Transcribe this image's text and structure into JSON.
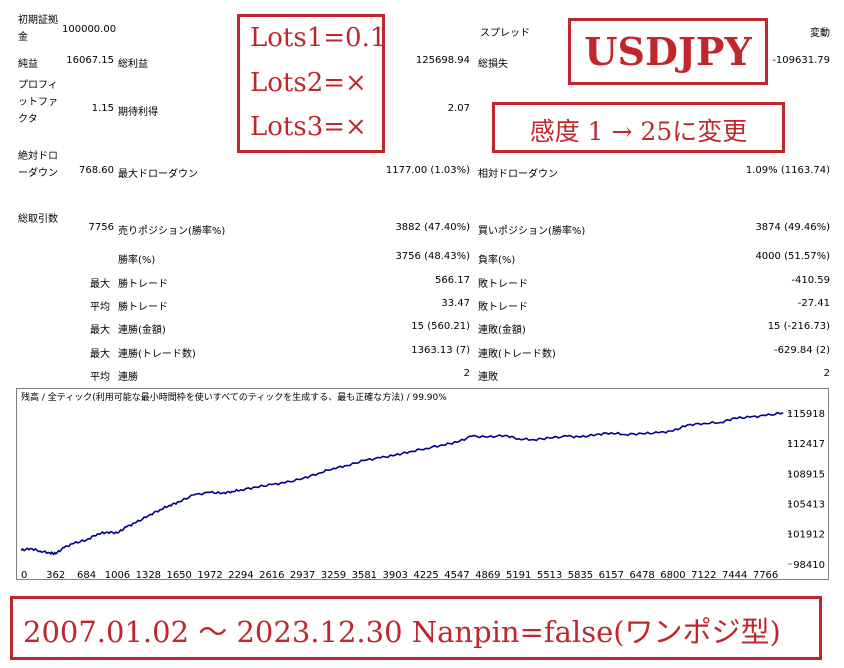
{
  "report": {
    "initial_deposit": {
      "label": "初期証拠金",
      "value": "100000.00"
    },
    "spread": {
      "label": "スプレッド",
      "value": "変動"
    },
    "net_profit": {
      "label": "純益",
      "value": "16067.15"
    },
    "gross_profit": {
      "label": "総利益",
      "value": "125698.94"
    },
    "gross_loss": {
      "label": "総損失",
      "value": "-109631.79"
    },
    "profit_factor": {
      "label": "プロフィットファクタ",
      "value": "1.15"
    },
    "expected_payoff": {
      "label": "期待利得",
      "value": "2.07"
    },
    "absolute_drawdown": {
      "label": "絶対ドローダウン",
      "value": "768.60"
    },
    "maximal_drawdown": {
      "label": "最大ドローダウン",
      "value": "1177.00 (1.03%)"
    },
    "relative_drawdown": {
      "label": "相対ドローダウン",
      "value": "1.09% (1163.74)"
    },
    "total_trades": {
      "label": "総取引数",
      "value": "7756"
    },
    "short_positions": {
      "label": "売りポジション(勝率%)",
      "value": "3882 (47.40%)"
    },
    "long_positions": {
      "label": "買いポジション(勝率%)",
      "value": "3874 (49.46%)"
    },
    "win_rate": {
      "label": "勝率(%)",
      "value": "3756 (48.43%)"
    },
    "loss_rate": {
      "label": "負率(%)",
      "value": "4000 (51.57%)"
    },
    "largest": {
      "prefix": "最大",
      "profit_label": "勝トレード",
      "profit_value": "566.17",
      "loss_label": "敗トレード",
      "loss_value": "-410.59"
    },
    "average": {
      "prefix": "平均",
      "profit_label": "勝トレード",
      "profit_value": "33.47",
      "loss_label": "敗トレード",
      "loss_value": "-27.41"
    },
    "max_consec_money": {
      "prefix": "最大",
      "wins_label": "連勝(金額)",
      "wins_value": "15 (560.21)",
      "losses_label": "連敗(金額)",
      "losses_value": "15 (-216.73)"
    },
    "max_consec_trades": {
      "prefix": "最大",
      "wins_label": "連勝(トレード数)",
      "wins_value": "1363.13 (7)",
      "losses_label": "連敗(トレード数)",
      "losses_value": "-629.84 (2)"
    },
    "avg_consec": {
      "prefix": "平均",
      "wins_label": "連勝",
      "wins_value": "2",
      "losses_label": "連敗",
      "losses_value": "2"
    }
  },
  "annotations": {
    "lots": [
      "Lots1=0.1",
      "Lots2=×",
      "Lots3=×"
    ],
    "symbol": "USDJPY",
    "sensitivity": "感度 1 → 25に変更",
    "period": "2007.01.02 ～ 2023.12.30 Nanpin=false(ワンポジ型)"
  },
  "colors": {
    "annotation_red": "#c0272d",
    "balance_line": "#00008b"
  },
  "chart_data": {
    "type": "line",
    "title": "残高 / 全ティック(利用可能な最小時間枠を使いすべてのティックを生成する、最も正確な方法) / 99.90%",
    "x_ticks": [
      "0",
      "362",
      "684",
      "1006",
      "1328",
      "1650",
      "1972",
      "2294",
      "2616",
      "2937",
      "3259",
      "3581",
      "3903",
      "4225",
      "4547",
      "4869",
      "5191",
      "5513",
      "5835",
      "6157",
      "6478",
      "6800",
      "7122",
      "7444",
      "7766"
    ],
    "y_ticks": [
      "115918",
      "112417",
      "108915",
      "105413",
      "101912",
      "98410"
    ],
    "xlim": [
      0,
      8000
    ],
    "ylim": [
      98410,
      116700
    ],
    "series": [
      {
        "x": [
          0,
          100,
          200,
          300,
          362,
          450,
          550,
          684,
          800,
          900,
          1006,
          1100,
          1200,
          1328,
          1450,
          1550,
          1650,
          1800,
          1972,
          2100,
          2200,
          2294,
          2450,
          2616,
          2750,
          2937,
          3100,
          3259,
          3400,
          3581,
          3750,
          3903,
          4050,
          4225,
          4400,
          4547,
          4700,
          4869,
          5050,
          5191,
          5350,
          5513,
          5700,
          5835,
          6000,
          6157,
          6300,
          6478,
          6650,
          6800,
          6950,
          7122,
          7300,
          7444,
          7600,
          7766,
          7950
        ],
        "y": [
          100000,
          100200,
          99900,
          99700,
          99600,
          100300,
          100800,
          101200,
          101900,
          102100,
          102000,
          102700,
          103200,
          104000,
          104700,
          105200,
          105600,
          106400,
          106700,
          106600,
          106800,
          107000,
          107300,
          107600,
          107800,
          108300,
          108900,
          109500,
          109800,
          110400,
          110700,
          111000,
          111400,
          111800,
          112200,
          112500,
          113200,
          113100,
          113300,
          112900,
          112800,
          113000,
          113200,
          113100,
          113400,
          113600,
          113400,
          113500,
          113600,
          113800,
          114500,
          114700,
          114800,
          115300,
          115400,
          115600,
          115900
        ]
      }
    ]
  }
}
